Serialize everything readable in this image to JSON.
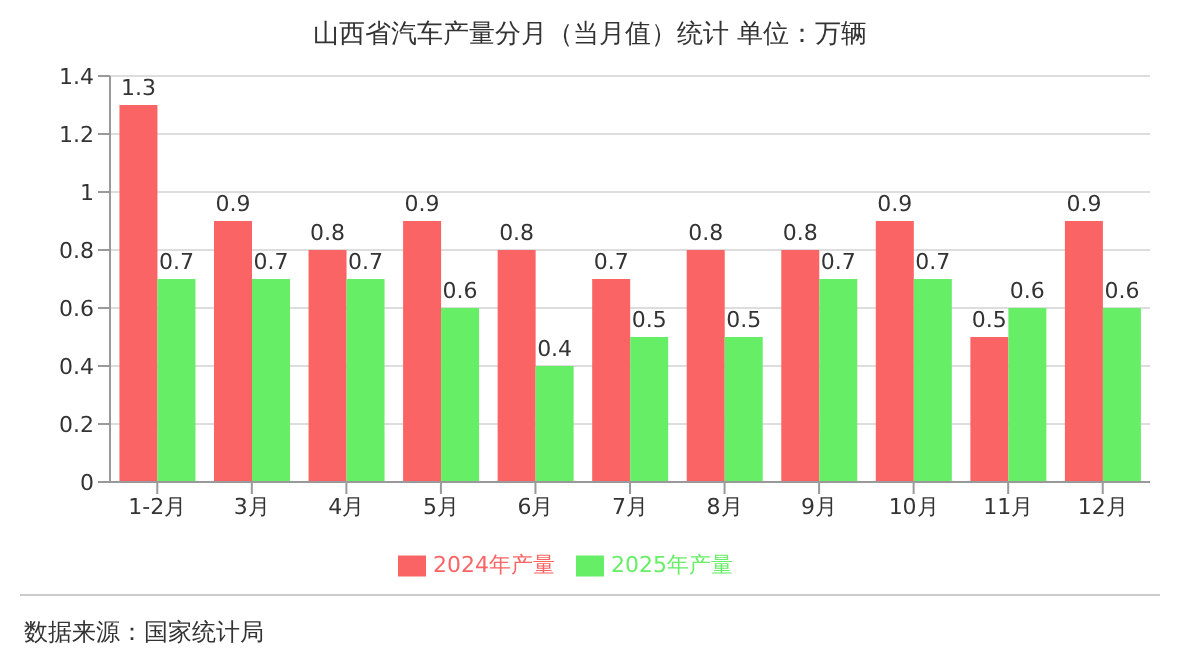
{
  "chart_data": {
    "type": "bar",
    "title": "山西省汽车产量分月（当月值）统计  单位：万辆",
    "categories": [
      "1-2月",
      "3月",
      "4月",
      "5月",
      "6月",
      "7月",
      "8月",
      "9月",
      "10月",
      "11月",
      "12月"
    ],
    "series": [
      {
        "name": "2024年产量",
        "color": "#fa6464",
        "values": [
          1.3,
          0.9,
          0.8,
          0.9,
          0.8,
          0.7,
          0.8,
          0.8,
          0.9,
          0.5,
          0.9
        ]
      },
      {
        "name": "2025年产量",
        "color": "#66ee66",
        "values": [
          0.7,
          0.7,
          0.7,
          0.6,
          0.4,
          0.5,
          0.5,
          0.7,
          0.7,
          0.6,
          0.6
        ]
      }
    ],
    "ylim": [
      0,
      1.4
    ],
    "yticks": [
      0,
      0.2,
      0.4,
      0.6,
      0.8,
      1,
      1.2,
      1.4
    ],
    "grid": "y",
    "legend": "bottom",
    "data_labels": true,
    "annotations": [
      "数据来源：国家统计局"
    ]
  }
}
